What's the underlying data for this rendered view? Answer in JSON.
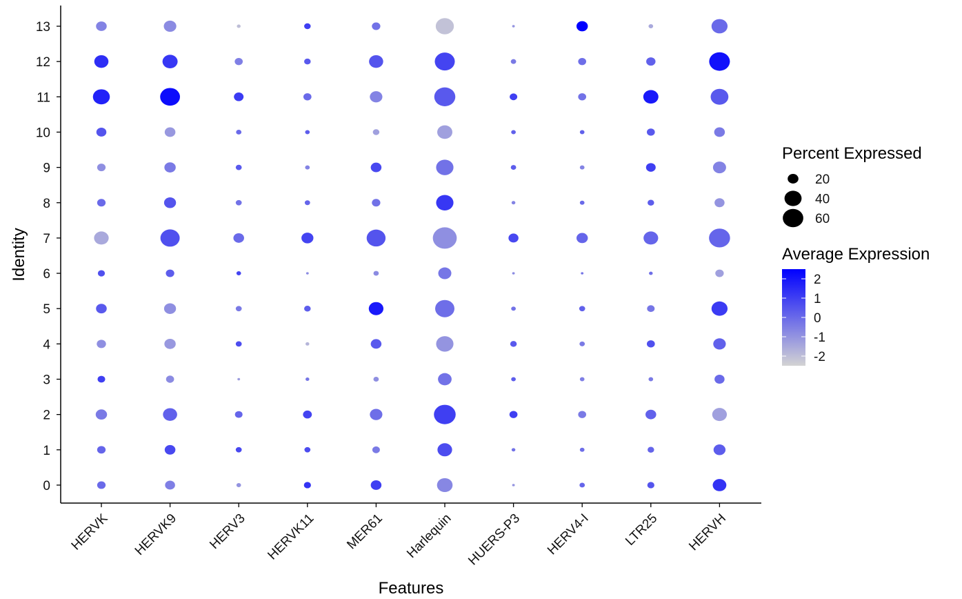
{
  "chart_data": {
    "type": "scatter",
    "subtype": "dot-plot",
    "xlabel": "Features",
    "ylabel": "Identity",
    "features": [
      "HERVK",
      "HERVK9",
      "HERV3",
      "HERVK11",
      "MER61",
      "Harlequin",
      "HUERS-P3",
      "HERV4-I",
      "LTR25",
      "HERVH"
    ],
    "identities": [
      "0",
      "1",
      "2",
      "3",
      "4",
      "5",
      "6",
      "7",
      "8",
      "9",
      "10",
      "11",
      "12",
      "13"
    ],
    "size_legend": {
      "title": "Percent Expressed",
      "breaks": [
        20,
        40,
        60
      ],
      "labels": [
        "20",
        "40",
        "60"
      ]
    },
    "color_legend": {
      "title": "Average Expression",
      "range": [
        -2.5,
        2.5
      ],
      "breaks": [
        2,
        1,
        0,
        -1,
        -2
      ],
      "labels": [
        "2",
        "1",
        "0",
        "-1",
        "-2"
      ],
      "low_color": "#d3d3d3",
      "high_color": "#0000ff"
    },
    "points": [
      {
        "feature": "HERVK",
        "identity": "13",
        "pct": 16,
        "avg": -0.6
      },
      {
        "feature": "HERVK",
        "identity": "12",
        "pct": 28,
        "avg": 1.4
      },
      {
        "feature": "HERVK",
        "identity": "11",
        "pct": 40,
        "avg": 1.7
      },
      {
        "feature": "HERVK",
        "identity": "10",
        "pct": 14,
        "avg": 0.5
      },
      {
        "feature": "HERVK",
        "identity": "9",
        "pct": 10,
        "avg": -0.9
      },
      {
        "feature": "HERVK",
        "identity": "8",
        "pct": 10,
        "avg": 0.0
      },
      {
        "feature": "HERVK",
        "identity": "7",
        "pct": 30,
        "avg": -1.5
      },
      {
        "feature": "HERVK",
        "identity": "6",
        "pct": 7,
        "avg": 0.6
      },
      {
        "feature": "HERVK",
        "identity": "5",
        "pct": 16,
        "avg": 0.4
      },
      {
        "feature": "HERVK",
        "identity": "4",
        "pct": 12,
        "avg": -0.9
      },
      {
        "feature": "HERVK",
        "identity": "3",
        "pct": 8,
        "avg": 1.0
      },
      {
        "feature": "HERVK",
        "identity": "2",
        "pct": 18,
        "avg": -0.4
      },
      {
        "feature": "HERVK",
        "identity": "1",
        "pct": 10,
        "avg": 0.1
      },
      {
        "feature": "HERVK",
        "identity": "0",
        "pct": 10,
        "avg": 0.0
      },
      {
        "feature": "HERVK9",
        "identity": "13",
        "pct": 22,
        "avg": -0.8
      },
      {
        "feature": "HERVK9",
        "identity": "12",
        "pct": 32,
        "avg": 1.2
      },
      {
        "feature": "HERVK9",
        "identity": "11",
        "pct": 55,
        "avg": 2.2
      },
      {
        "feature": "HERVK9",
        "identity": "10",
        "pct": 16,
        "avg": -1.1
      },
      {
        "feature": "HERVK9",
        "identity": "9",
        "pct": 18,
        "avg": -0.4
      },
      {
        "feature": "HERVK9",
        "identity": "8",
        "pct": 20,
        "avg": 0.5
      },
      {
        "feature": "HERVK9",
        "identity": "7",
        "pct": 52,
        "avg": 0.6
      },
      {
        "feature": "HERVK9",
        "identity": "6",
        "pct": 10,
        "avg": 0.3
      },
      {
        "feature": "HERVK9",
        "identity": "5",
        "pct": 20,
        "avg": -0.9
      },
      {
        "feature": "HERVK9",
        "identity": "4",
        "pct": 18,
        "avg": -1.1
      },
      {
        "feature": "HERVK9",
        "identity": "3",
        "pct": 9,
        "avg": -0.8
      },
      {
        "feature": "HERVK9",
        "identity": "2",
        "pct": 28,
        "avg": 0.2
      },
      {
        "feature": "HERVK9",
        "identity": "1",
        "pct": 16,
        "avg": 0.8
      },
      {
        "feature": "HERVK9",
        "identity": "0",
        "pct": 14,
        "avg": -0.5
      },
      {
        "feature": "HERV3",
        "identity": "13",
        "pct": 2,
        "avg": -2.0
      },
      {
        "feature": "HERV3",
        "identity": "12",
        "pct": 9,
        "avg": -0.5
      },
      {
        "feature": "HERV3",
        "identity": "11",
        "pct": 13,
        "avg": 1.1
      },
      {
        "feature": "HERV3",
        "identity": "10",
        "pct": 4,
        "avg": 0.0
      },
      {
        "feature": "HERV3",
        "identity": "9",
        "pct": 5,
        "avg": 0.4
      },
      {
        "feature": "HERV3",
        "identity": "8",
        "pct": 5,
        "avg": -0.2
      },
      {
        "feature": "HERV3",
        "identity": "7",
        "pct": 16,
        "avg": 0.0
      },
      {
        "feature": "HERV3",
        "identity": "6",
        "pct": 3,
        "avg": 0.9
      },
      {
        "feature": "HERV3",
        "identity": "5",
        "pct": 5,
        "avg": -0.4
      },
      {
        "feature": "HERV3",
        "identity": "4",
        "pct": 5,
        "avg": 0.7
      },
      {
        "feature": "HERV3",
        "identity": "3",
        "pct": 1,
        "avg": -1.2
      },
      {
        "feature": "HERV3",
        "identity": "2",
        "pct": 8,
        "avg": 0.1
      },
      {
        "feature": "HERV3",
        "identity": "1",
        "pct": 5,
        "avg": 0.8
      },
      {
        "feature": "HERV3",
        "identity": "0",
        "pct": 3,
        "avg": -1.0
      },
      {
        "feature": "HERVK11",
        "identity": "13",
        "pct": 6,
        "avg": 1.0
      },
      {
        "feature": "HERVK11",
        "identity": "12",
        "pct": 6,
        "avg": 0.4
      },
      {
        "feature": "HERVK11",
        "identity": "11",
        "pct": 9,
        "avg": 0.0
      },
      {
        "feature": "HERVK11",
        "identity": "10",
        "pct": 3,
        "avg": 0.3
      },
      {
        "feature": "HERVK11",
        "identity": "9",
        "pct": 3,
        "avg": -0.6
      },
      {
        "feature": "HERVK11",
        "identity": "8",
        "pct": 4,
        "avg": 0.1
      },
      {
        "feature": "HERVK11",
        "identity": "7",
        "pct": 20,
        "avg": 0.9
      },
      {
        "feature": "HERVK11",
        "identity": "6",
        "pct": 1,
        "avg": -0.8
      },
      {
        "feature": "HERVK11",
        "identity": "5",
        "pct": 6,
        "avg": 0.3
      },
      {
        "feature": "HERVK11",
        "identity": "4",
        "pct": 2,
        "avg": -1.8
      },
      {
        "feature": "HERVK11",
        "identity": "3",
        "pct": 2,
        "avg": -0.3
      },
      {
        "feature": "HERVK11",
        "identity": "2",
        "pct": 11,
        "avg": 0.9
      },
      {
        "feature": "HERVK11",
        "identity": "1",
        "pct": 5,
        "avg": 0.7
      },
      {
        "feature": "HERVK11",
        "identity": "0",
        "pct": 7,
        "avg": 1.3
      },
      {
        "feature": "MER61",
        "identity": "13",
        "pct": 10,
        "avg": -0.2
      },
      {
        "feature": "MER61",
        "identity": "12",
        "pct": 28,
        "avg": 0.5
      },
      {
        "feature": "MER61",
        "identity": "11",
        "pct": 22,
        "avg": -0.6
      },
      {
        "feature": "MER61",
        "identity": "10",
        "pct": 6,
        "avg": -1.3
      },
      {
        "feature": "MER61",
        "identity": "9",
        "pct": 16,
        "avg": 0.8
      },
      {
        "feature": "MER61",
        "identity": "8",
        "pct": 10,
        "avg": -0.2
      },
      {
        "feature": "MER61",
        "identity": "7",
        "pct": 50,
        "avg": 0.5
      },
      {
        "feature": "MER61",
        "identity": "6",
        "pct": 4,
        "avg": -0.8
      },
      {
        "feature": "MER61",
        "identity": "5",
        "pct": 30,
        "avg": 1.9
      },
      {
        "feature": "MER61",
        "identity": "4",
        "pct": 16,
        "avg": 0.4
      },
      {
        "feature": "MER61",
        "identity": "3",
        "pct": 4,
        "avg": -0.9
      },
      {
        "feature": "MER61",
        "identity": "2",
        "pct": 22,
        "avg": -0.1
      },
      {
        "feature": "MER61",
        "identity": "1",
        "pct": 8,
        "avg": -0.4
      },
      {
        "feature": "MER61",
        "identity": "0",
        "pct": 16,
        "avg": 1.0
      },
      {
        "feature": "Harlequin",
        "identity": "13",
        "pct": 46,
        "avg": -2.1
      },
      {
        "feature": "Harlequin",
        "identity": "12",
        "pct": 56,
        "avg": 0.9
      },
      {
        "feature": "Harlequin",
        "identity": "11",
        "pct": 62,
        "avg": 0.4
      },
      {
        "feature": "Harlequin",
        "identity": "10",
        "pct": 32,
        "avg": -1.3
      },
      {
        "feature": "Harlequin",
        "identity": "9",
        "pct": 42,
        "avg": -0.2
      },
      {
        "feature": "Harlequin",
        "identity": "8",
        "pct": 42,
        "avg": 1.2
      },
      {
        "feature": "Harlequin",
        "identity": "7",
        "pct": 80,
        "avg": -0.9
      },
      {
        "feature": "Harlequin",
        "identity": "6",
        "pct": 24,
        "avg": -0.3
      },
      {
        "feature": "Harlequin",
        "identity": "5",
        "pct": 52,
        "avg": -0.1
      },
      {
        "feature": "Harlequin",
        "identity": "4",
        "pct": 42,
        "avg": -1.0
      },
      {
        "feature": "Harlequin",
        "identity": "3",
        "pct": 26,
        "avg": -0.2
      },
      {
        "feature": "Harlequin",
        "identity": "2",
        "pct": 66,
        "avg": 1.0
      },
      {
        "feature": "Harlequin",
        "identity": "1",
        "pct": 30,
        "avg": 0.7
      },
      {
        "feature": "Harlequin",
        "identity": "0",
        "pct": 34,
        "avg": -0.7
      },
      {
        "feature": "HUERS-P3",
        "identity": "13",
        "pct": 1,
        "avg": -1.0
      },
      {
        "feature": "HUERS-P3",
        "identity": "12",
        "pct": 4,
        "avg": -0.4
      },
      {
        "feature": "HUERS-P3",
        "identity": "11",
        "pct": 8,
        "avg": 1.0
      },
      {
        "feature": "HUERS-P3",
        "identity": "10",
        "pct": 3,
        "avg": 0.2
      },
      {
        "feature": "HUERS-P3",
        "identity": "9",
        "pct": 4,
        "avg": 0.3
      },
      {
        "feature": "HUERS-P3",
        "identity": "8",
        "pct": 2,
        "avg": -0.6
      },
      {
        "feature": "HUERS-P3",
        "identity": "7",
        "pct": 14,
        "avg": 0.8
      },
      {
        "feature": "HUERS-P3",
        "identity": "6",
        "pct": 1,
        "avg": -0.8
      },
      {
        "feature": "HUERS-P3",
        "identity": "5",
        "pct": 3,
        "avg": -0.2
      },
      {
        "feature": "HUERS-P3",
        "identity": "4",
        "pct": 6,
        "avg": 0.4
      },
      {
        "feature": "HUERS-P3",
        "identity": "3",
        "pct": 3,
        "avg": 0.3
      },
      {
        "feature": "HUERS-P3",
        "identity": "2",
        "pct": 9,
        "avg": 1.0
      },
      {
        "feature": "HUERS-P3",
        "identity": "1",
        "pct": 2,
        "avg": -0.2
      },
      {
        "feature": "HUERS-P3",
        "identity": "0",
        "pct": 1,
        "avg": -1.0
      },
      {
        "feature": "HERV4-I",
        "identity": "13",
        "pct": 18,
        "avg": 2.6
      },
      {
        "feature": "HERV4-I",
        "identity": "12",
        "pct": 9,
        "avg": -0.1
      },
      {
        "feature": "HERV4-I",
        "identity": "11",
        "pct": 9,
        "avg": -0.2
      },
      {
        "feature": "HERV4-I",
        "identity": "10",
        "pct": 3,
        "avg": 0.2
      },
      {
        "feature": "HERV4-I",
        "identity": "9",
        "pct": 3,
        "avg": -0.6
      },
      {
        "feature": "HERV4-I",
        "identity": "8",
        "pct": 3,
        "avg": 0.0
      },
      {
        "feature": "HERV4-I",
        "identity": "7",
        "pct": 18,
        "avg": 0.1
      },
      {
        "feature": "HERV4-I",
        "identity": "6",
        "pct": 1,
        "avg": -0.3
      },
      {
        "feature": "HERV4-I",
        "identity": "5",
        "pct": 5,
        "avg": 0.2
      },
      {
        "feature": "HERV4-I",
        "identity": "4",
        "pct": 4,
        "avg": -0.4
      },
      {
        "feature": "HERV4-I",
        "identity": "3",
        "pct": 3,
        "avg": -0.5
      },
      {
        "feature": "HERV4-I",
        "identity": "2",
        "pct": 9,
        "avg": -0.4
      },
      {
        "feature": "HERV4-I",
        "identity": "1",
        "pct": 3,
        "avg": -0.1
      },
      {
        "feature": "HERV4-I",
        "identity": "0",
        "pct": 4,
        "avg": 0.1
      },
      {
        "feature": "LTR25",
        "identity": "13",
        "pct": 3,
        "avg": -1.5
      },
      {
        "feature": "LTR25",
        "identity": "12",
        "pct": 12,
        "avg": 0.2
      },
      {
        "feature": "LTR25",
        "identity": "11",
        "pct": 32,
        "avg": 1.9
      },
      {
        "feature": "LTR25",
        "identity": "10",
        "pct": 9,
        "avg": 0.4
      },
      {
        "feature": "LTR25",
        "identity": "9",
        "pct": 13,
        "avg": 1.0
      },
      {
        "feature": "LTR25",
        "identity": "8",
        "pct": 6,
        "avg": 0.3
      },
      {
        "feature": "LTR25",
        "identity": "7",
        "pct": 30,
        "avg": 0.1
      },
      {
        "feature": "LTR25",
        "identity": "6",
        "pct": 2,
        "avg": -0.1
      },
      {
        "feature": "LTR25",
        "identity": "5",
        "pct": 8,
        "avg": -0.3
      },
      {
        "feature": "LTR25",
        "identity": "4",
        "pct": 9,
        "avg": 0.6
      },
      {
        "feature": "LTR25",
        "identity": "3",
        "pct": 3,
        "avg": -0.4
      },
      {
        "feature": "LTR25",
        "identity": "2",
        "pct": 16,
        "avg": 0.2
      },
      {
        "feature": "LTR25",
        "identity": "1",
        "pct": 6,
        "avg": 0.1
      },
      {
        "feature": "LTR25",
        "identity": "0",
        "pct": 7,
        "avg": 0.5
      },
      {
        "feature": "HERVH",
        "identity": "13",
        "pct": 36,
        "avg": 0.0
      },
      {
        "feature": "HERVH",
        "identity": "12",
        "pct": 60,
        "avg": 2.1
      },
      {
        "feature": "HERVH",
        "identity": "11",
        "pct": 44,
        "avg": 0.4
      },
      {
        "feature": "HERVH",
        "identity": "10",
        "pct": 16,
        "avg": -0.4
      },
      {
        "feature": "HERVH",
        "identity": "9",
        "pct": 24,
        "avg": -0.6
      },
      {
        "feature": "HERVH",
        "identity": "8",
        "pct": 14,
        "avg": -1.0
      },
      {
        "feature": "HERVH",
        "identity": "7",
        "pct": 62,
        "avg": 0.1
      },
      {
        "feature": "HERVH",
        "identity": "6",
        "pct": 10,
        "avg": -1.3
      },
      {
        "feature": "HERVH",
        "identity": "5",
        "pct": 36,
        "avg": 1.1
      },
      {
        "feature": "HERVH",
        "identity": "4",
        "pct": 22,
        "avg": 0.2
      },
      {
        "feature": "HERVH",
        "identity": "3",
        "pct": 14,
        "avg": 0.0
      },
      {
        "feature": "HERVH",
        "identity": "2",
        "pct": 30,
        "avg": -1.3
      },
      {
        "feature": "HERVH",
        "identity": "1",
        "pct": 20,
        "avg": 0.3
      },
      {
        "feature": "HERVH",
        "identity": "0",
        "pct": 26,
        "avg": 1.3
      }
    ]
  }
}
